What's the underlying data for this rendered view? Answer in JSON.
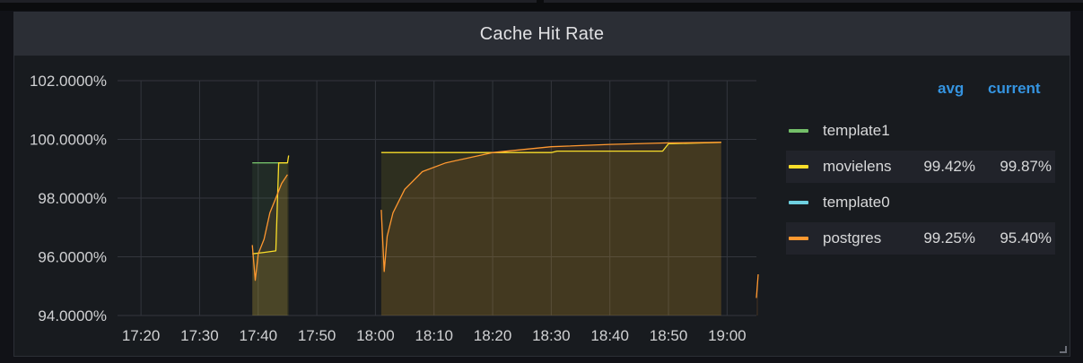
{
  "panel": {
    "title": "Cache Hit Rate"
  },
  "legend": {
    "headers": {
      "avg": "avg",
      "current": "current"
    },
    "items": [
      {
        "name": "template1",
        "color": "#73bf69",
        "avg": "",
        "current": ""
      },
      {
        "name": "movielens",
        "color": "#fade2a",
        "avg": "99.42%",
        "current": "99.87%"
      },
      {
        "name": "template0",
        "color": "#6ed0e0",
        "avg": "",
        "current": ""
      },
      {
        "name": "postgres",
        "color": "#ff9830",
        "avg": "99.25%",
        "current": "95.40%"
      }
    ]
  },
  "chart_data": {
    "type": "area",
    "title": "Cache Hit Rate",
    "xlabel": "",
    "ylabel": "",
    "x_ticks": [
      "17:20",
      "17:30",
      "17:40",
      "17:50",
      "18:00",
      "18:10",
      "18:20",
      "18:30",
      "18:40",
      "18:50",
      "19:00"
    ],
    "y_ticks": [
      "94.0000%",
      "96.0000%",
      "98.0000%",
      "100.0000%",
      "102.0000%"
    ],
    "xlim": [
      "17:16",
      "19:05"
    ],
    "ylim": [
      94,
      102
    ],
    "grid": true,
    "legend_position": "right",
    "series": [
      {
        "name": "template1",
        "color": "#73bf69",
        "points": [
          [
            "17:39",
            99.2
          ],
          [
            "17:45",
            99.2
          ]
        ]
      },
      {
        "name": "movielens",
        "color": "#fade2a",
        "segments": [
          [
            [
              "17:39",
              96.1
            ],
            [
              "17:41",
              96.15
            ],
            [
              "17:43",
              96.2
            ],
            [
              "17:43.5",
              99.2
            ],
            [
              "17:45",
              99.2
            ],
            [
              "17:45.2",
              99.45
            ]
          ],
          [
            [
              "18:01",
              99.55
            ],
            [
              "18:20",
              99.55
            ],
            [
              "18:30",
              99.55
            ],
            [
              "18:31",
              99.6
            ],
            [
              "18:49",
              99.6
            ],
            [
              "18:50",
              99.85
            ],
            [
              "18:59",
              99.9
            ]
          ]
        ]
      },
      {
        "name": "template0",
        "color": "#6ed0e0",
        "points": []
      },
      {
        "name": "postgres",
        "color": "#ff9830",
        "segments": [
          [
            [
              "17:39",
              96.4
            ],
            [
              "17:39.5",
              95.2
            ],
            [
              "17:40",
              96.1
            ],
            [
              "17:41",
              96.6
            ],
            [
              "17:42",
              97.5
            ],
            [
              "17:43",
              98.0
            ],
            [
              "17:44",
              98.5
            ],
            [
              "17:45",
              98.8
            ]
          ],
          [
            [
              "18:01",
              97.6
            ],
            [
              "18:01.5",
              95.5
            ],
            [
              "18:02",
              96.7
            ],
            [
              "18:03",
              97.5
            ],
            [
              "18:05",
              98.3
            ],
            [
              "18:08",
              98.9
            ],
            [
              "18:12",
              99.2
            ],
            [
              "18:20",
              99.55
            ],
            [
              "18:30",
              99.75
            ],
            [
              "18:40",
              99.83
            ],
            [
              "18:50",
              99.88
            ],
            [
              "18:59",
              99.9
            ]
          ],
          [
            [
              "19:05",
              94.6
            ],
            [
              "19:05.3",
              95.4
            ]
          ]
        ]
      }
    ]
  }
}
